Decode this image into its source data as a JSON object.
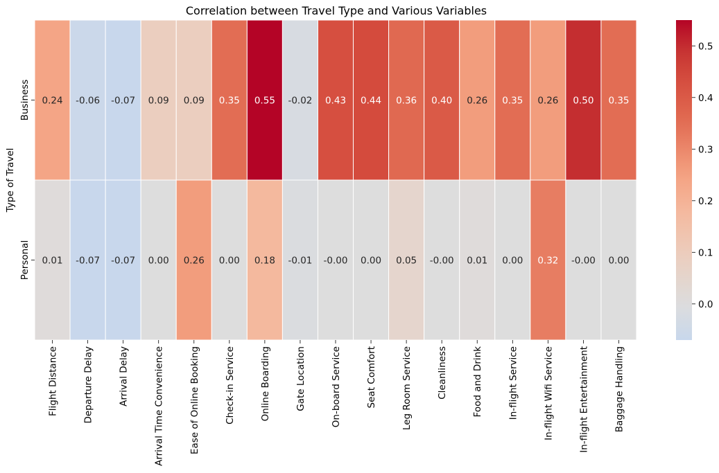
{
  "chart_data": {
    "type": "heatmap",
    "title": "Correlation between Travel Type and Various Variables",
    "ylabel": "Type of Travel",
    "xlabel": "",
    "rows": [
      "Business",
      "Personal"
    ],
    "columns": [
      "Flight Distance",
      "Departure Delay",
      "Arrival Delay",
      "Arrival Time Convenience",
      "Ease of Online Booking",
      "Check-in Service",
      "Online Boarding",
      "Gate Location",
      "On-board Service",
      "Seat Comfort",
      "Leg Room Service",
      "Cleanliness",
      "Food and Drink",
      "In-flight Service",
      "In-flight Wifi Service",
      "In-flight Entertainment",
      "Baggage Handling"
    ],
    "values": [
      [
        0.24,
        -0.06,
        -0.07,
        0.09,
        0.09,
        0.35,
        0.55,
        -0.02,
        0.43,
        0.44,
        0.36,
        0.4,
        0.26,
        0.35,
        0.26,
        0.5,
        0.35
      ],
      [
        0.01,
        -0.07,
        -0.07,
        0.0,
        0.26,
        0.0,
        0.18,
        -0.01,
        -0.0,
        0.0,
        0.05,
        -0.0,
        0.01,
        0.0,
        0.32,
        -0.0,
        0.0
      ]
    ],
    "cell_labels": [
      [
        "0.24",
        "-0.06",
        "-0.07",
        "0.09",
        "0.09",
        "0.35",
        "0.55",
        "-0.02",
        "0.43",
        "0.44",
        "0.36",
        "0.40",
        "0.26",
        "0.35",
        "0.26",
        "0.50",
        "0.35"
      ],
      [
        "0.01",
        "-0.07",
        "-0.07",
        "0.00",
        "0.26",
        "0.00",
        "0.18",
        "-0.01",
        "-0.00",
        "0.00",
        "0.05",
        "-0.00",
        "0.01",
        "0.00",
        "0.32",
        "-0.00",
        "0.00"
      ]
    ],
    "colormap": "coolwarm",
    "vmin": -0.07,
    "vmax": 0.55,
    "center": 0.0,
    "colorbar": {
      "ticks": [
        0.0,
        0.1,
        0.2,
        0.3,
        0.4,
        0.5
      ],
      "tick_labels": [
        "0.0",
        "0.1",
        "0.2",
        "0.3",
        "0.4",
        "0.5"
      ]
    },
    "grid": false,
    "legend": "colorbar-right"
  }
}
